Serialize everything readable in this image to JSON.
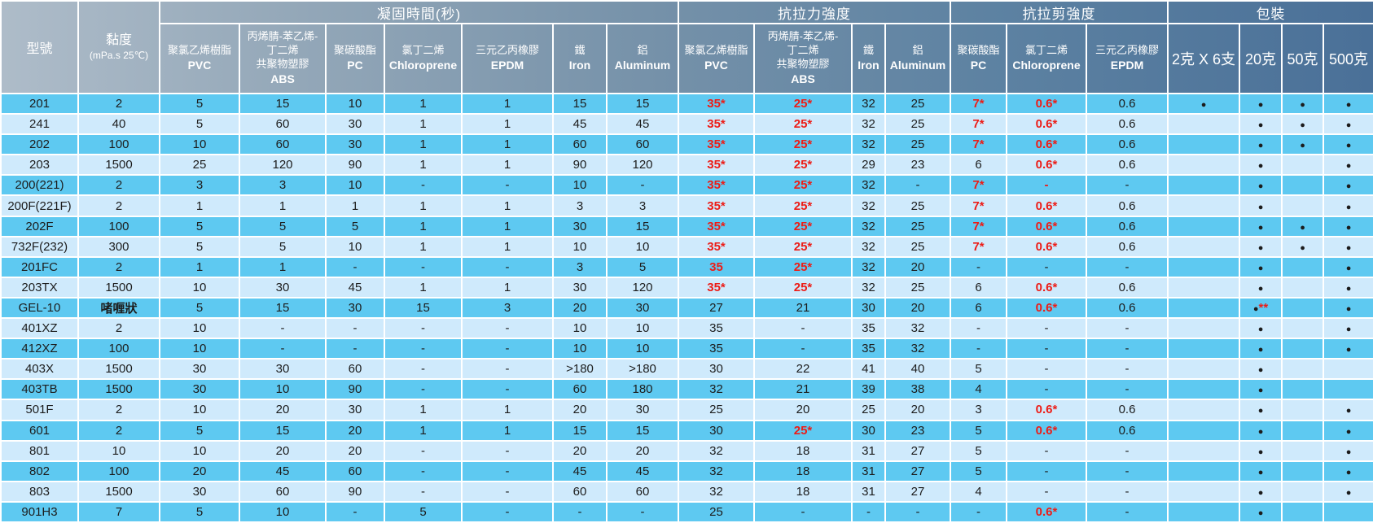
{
  "colors": {
    "row_dark": "#5ec9f1",
    "row_light": "#cfeafc",
    "highlight_red": "#ed1c16",
    "header_gradient_left": "#aebcc9",
    "header_gradient_right": "#4a7098",
    "grid_line": "#ffffff",
    "text": "#1c1c1c",
    "header_text": "#ffffff"
  },
  "chart_data": {
    "type": "table",
    "title": "",
    "model_header": "型號",
    "viscosity_header": "黏度",
    "viscosity_unit": "(mPa.s 25℃)",
    "column_groups": [
      {
        "label": "凝固時間(秒)",
        "columns": [
          {
            "key": "settime-pvc",
            "zh": [
              "聚氯乙烯樹脂"
            ],
            "en": "PVC"
          },
          {
            "key": "settime-abs",
            "zh": [
              "丙烯腈-苯乙烯-",
              "丁二烯",
              "共聚物塑膠"
            ],
            "en": "ABS"
          },
          {
            "key": "settime-pc",
            "zh": [
              "聚碳酸酯"
            ],
            "en": "PC"
          },
          {
            "key": "settime-chloroprene",
            "zh": [
              "氯丁二烯"
            ],
            "en": "Chloroprene"
          },
          {
            "key": "settime-epdm",
            "zh": [
              "三元乙丙橡膠"
            ],
            "en": "EPDM"
          },
          {
            "key": "settime-iron",
            "zh": [
              "鐵"
            ],
            "en": "Iron"
          },
          {
            "key": "settime-aluminum",
            "zh": [
              "鋁"
            ],
            "en": "Aluminum"
          }
        ]
      },
      {
        "label": "抗拉力強度",
        "columns": [
          {
            "key": "tensile-pvc",
            "zh": [
              "聚氯乙烯樹脂"
            ],
            "en": "PVC"
          },
          {
            "key": "tensile-abs",
            "zh": [
              "丙烯腈-苯乙烯-",
              "丁二烯",
              "共聚物塑膠"
            ],
            "en": "ABS"
          },
          {
            "key": "tensile-iron",
            "zh": [
              "鐵"
            ],
            "en": "Iron"
          },
          {
            "key": "tensile-aluminum",
            "zh": [
              "鋁"
            ],
            "en": "Aluminum"
          }
        ]
      },
      {
        "label": "抗拉剪強度",
        "columns": [
          {
            "key": "shear-pc",
            "zh": [
              "聚碳酸酯"
            ],
            "en": "PC"
          },
          {
            "key": "shear-chloroprene",
            "zh": [
              "氯丁二烯"
            ],
            "en": "Chloroprene"
          },
          {
            "key": "shear-epdm",
            "zh": [
              "三元乙丙橡膠"
            ],
            "en": "EPDM"
          }
        ]
      },
      {
        "label": "包裝",
        "columns": [
          {
            "key": "pkg-2gx6",
            "zh": [
              "2克 X 6支"
            ],
            "en": ""
          },
          {
            "key": "pkg-20g",
            "zh": [
              "20克"
            ],
            "en": ""
          },
          {
            "key": "pkg-50g",
            "zh": [
              "50克"
            ],
            "en": ""
          },
          {
            "key": "pkg-500g",
            "zh": [
              "500克"
            ],
            "en": ""
          }
        ]
      }
    ],
    "red_prefix_note": "values prefixed with ! are rendered red",
    "rows": [
      {
        "model": "201",
        "viscosity": "2",
        "values": [
          "5",
          "15",
          "10",
          "1",
          "1",
          "15",
          "15",
          "!35*",
          "!25*",
          "32",
          "25",
          "!7*",
          "!0.6*",
          "0.6",
          "●",
          "●",
          "●",
          "●"
        ]
      },
      {
        "model": "241",
        "viscosity": "40",
        "values": [
          "5",
          "60",
          "30",
          "1",
          "1",
          "45",
          "45",
          "!35*",
          "!25*",
          "32",
          "25",
          "!7*",
          "!0.6*",
          "0.6",
          "",
          "●",
          "●",
          "●"
        ]
      },
      {
        "model": "202",
        "viscosity": "100",
        "values": [
          "10",
          "60",
          "30",
          "1",
          "1",
          "60",
          "60",
          "!35*",
          "!25*",
          "32",
          "25",
          "!7*",
          "!0.6*",
          "0.6",
          "",
          "●",
          "●",
          "●"
        ]
      },
      {
        "model": "203",
        "viscosity": "1500",
        "values": [
          "25",
          "120",
          "90",
          "1",
          "1",
          "90",
          "120",
          "!35*",
          "!25*",
          "29",
          "23",
          "6",
          "!0.6*",
          "0.6",
          "",
          "●",
          "",
          "●"
        ]
      },
      {
        "model": "200(221)",
        "viscosity": "2",
        "values": [
          "3",
          "3",
          "10",
          "-",
          "-",
          "10",
          "-",
          "!35*",
          "!25*",
          "32",
          "-",
          "!7*",
          "!-",
          "-",
          "",
          "●",
          "",
          "●"
        ]
      },
      {
        "model": "200F(221F)",
        "viscosity": "2",
        "values": [
          "1",
          "1",
          "1",
          "1",
          "1",
          "3",
          "3",
          "!35*",
          "!25*",
          "32",
          "25",
          "!7*",
          "!0.6*",
          "0.6",
          "",
          "●",
          "",
          "●"
        ]
      },
      {
        "model": "202F",
        "viscosity": "100",
        "values": [
          "5",
          "5",
          "5",
          "1",
          "1",
          "30",
          "15",
          "!35*",
          "!25*",
          "32",
          "25",
          "!7*",
          "!0.6*",
          "0.6",
          "",
          "●",
          "●",
          "●"
        ]
      },
      {
        "model": "732F(232)",
        "viscosity": "300",
        "values": [
          "5",
          "5",
          "10",
          "1",
          "1",
          "10",
          "10",
          "!35*",
          "!25*",
          "32",
          "25",
          "!7*",
          "!0.6*",
          "0.6",
          "",
          "●",
          "●",
          "●"
        ]
      },
      {
        "model": "201FC",
        "viscosity": "2",
        "values": [
          "1",
          "1",
          "-",
          "-",
          "-",
          "3",
          "5",
          "!35",
          "!25*",
          "32",
          "20",
          "-",
          "-",
          "-",
          "",
          "●",
          "",
          "●"
        ]
      },
      {
        "model": "203TX",
        "viscosity": "1500",
        "values": [
          "10",
          "30",
          "45",
          "1",
          "1",
          "30",
          "120",
          "!35*",
          "!25*",
          "32",
          "25",
          "6",
          "!0.6*",
          "0.6",
          "",
          "●",
          "",
          "●"
        ]
      },
      {
        "model": "GEL-10",
        "viscosity": "啫喱狀",
        "values": [
          "5",
          "15",
          "30",
          "15",
          "3",
          "20",
          "30",
          "27",
          "21",
          "30",
          "20",
          "6",
          "!0.6*",
          "0.6",
          "",
          "●**",
          "",
          "●"
        ]
      },
      {
        "model": "401XZ",
        "viscosity": "2",
        "values": [
          "10",
          "-",
          "-",
          "-",
          "-",
          "10",
          "10",
          "35",
          "-",
          "35",
          "32",
          "-",
          "-",
          "-",
          "",
          "●",
          "",
          "●"
        ]
      },
      {
        "model": "412XZ",
        "viscosity": "100",
        "values": [
          "10",
          "-",
          "-",
          "-",
          "-",
          "10",
          "10",
          "35",
          "-",
          "35",
          "32",
          "-",
          "-",
          "-",
          "",
          "●",
          "",
          "●"
        ]
      },
      {
        "model": "403X",
        "viscosity": "1500",
        "values": [
          "30",
          "30",
          "60",
          "-",
          "-",
          ">180",
          ">180",
          "30",
          "22",
          "41",
          "40",
          "5",
          "-",
          "-",
          "",
          "●",
          "",
          ""
        ]
      },
      {
        "model": "403TB",
        "viscosity": "1500",
        "values": [
          "30",
          "10",
          "90",
          "-",
          "-",
          "60",
          "180",
          "32",
          "21",
          "39",
          "38",
          "4",
          "-",
          "-",
          "",
          "●",
          "",
          ""
        ]
      },
      {
        "model": "501F",
        "viscosity": "2",
        "values": [
          "10",
          "20",
          "30",
          "1",
          "1",
          "20",
          "30",
          "25",
          "20",
          "25",
          "20",
          "3",
          "!0.6*",
          "0.6",
          "",
          "●",
          "",
          "●"
        ]
      },
      {
        "model": "601",
        "viscosity": "2",
        "values": [
          "5",
          "15",
          "20",
          "1",
          "1",
          "15",
          "15",
          "30",
          "!25*",
          "30",
          "23",
          "5",
          "!0.6*",
          "0.6",
          "",
          "●",
          "",
          "●"
        ]
      },
      {
        "model": "801",
        "viscosity": "10",
        "values": [
          "10",
          "20",
          "20",
          "-",
          "-",
          "20",
          "20",
          "32",
          "18",
          "31",
          "27",
          "5",
          "-",
          "-",
          "",
          "●",
          "",
          "●"
        ]
      },
      {
        "model": "802",
        "viscosity": "100",
        "values": [
          "20",
          "45",
          "60",
          "-",
          "-",
          "45",
          "45",
          "32",
          "18",
          "31",
          "27",
          "5",
          "-",
          "-",
          "",
          "●",
          "",
          "●"
        ]
      },
      {
        "model": "803",
        "viscosity": "1500",
        "values": [
          "30",
          "60",
          "90",
          "-",
          "-",
          "60",
          "60",
          "32",
          "18",
          "31",
          "27",
          "4",
          "-",
          "-",
          "",
          "●",
          "",
          "●"
        ]
      },
      {
        "model": "901H3",
        "viscosity": "7",
        "values": [
          "5",
          "10",
          "-",
          "5",
          "-",
          "-",
          "-",
          "25",
          "-",
          "-",
          "-",
          "-",
          "!0.6*",
          "-",
          "",
          "●",
          "",
          ""
        ]
      }
    ]
  }
}
